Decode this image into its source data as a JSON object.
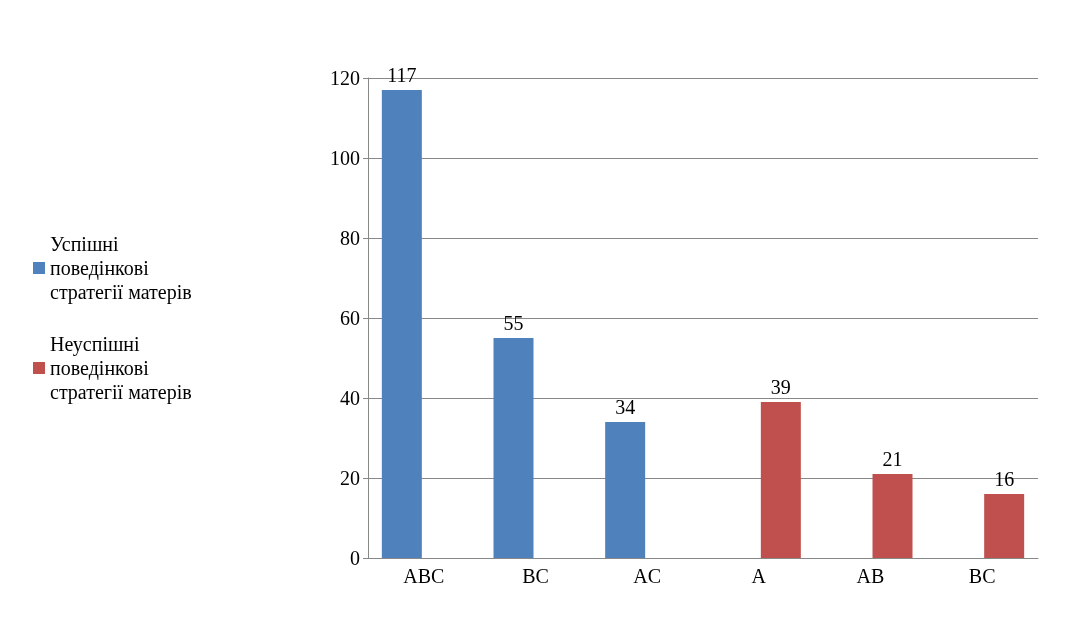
{
  "chart_data": {
    "type": "bar",
    "categories": [
      "ABC",
      "BC",
      "AC",
      "A",
      "AB",
      "BC"
    ],
    "series": [
      {
        "name": "Успішні поведінкові стратегії матерів",
        "color": "#4f81bd",
        "values": [
          117,
          55,
          34,
          0,
          0,
          0
        ],
        "value_labels": [
          "117",
          "55",
          "34",
          null,
          null,
          null
        ]
      },
      {
        "name": "Неуспішні поведінкові стратегії матерів",
        "color": "#c0504d",
        "values": [
          0,
          0,
          0,
          39,
          21,
          16
        ],
        "value_labels": [
          null,
          null,
          null,
          "39",
          "21",
          "16"
        ]
      }
    ],
    "ylim": [
      0,
      120
    ],
    "yticks": [
      0,
      20,
      40,
      60,
      80,
      100,
      120
    ],
    "grid": "y",
    "legend": "left"
  }
}
